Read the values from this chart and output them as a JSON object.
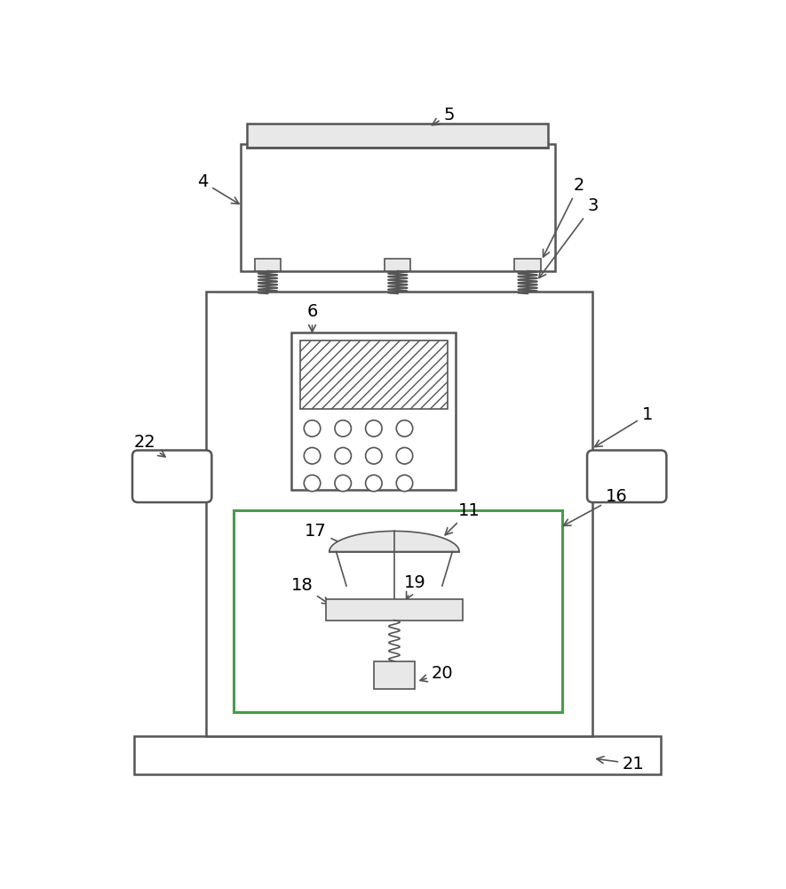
{
  "bg_color": "#ffffff",
  "line_color": "#555555",
  "gray_fill": "#e8e8e8",
  "green_line": "#4a9a4a",
  "fig_w": 8.85,
  "fig_h": 10.0,
  "dpi": 100
}
